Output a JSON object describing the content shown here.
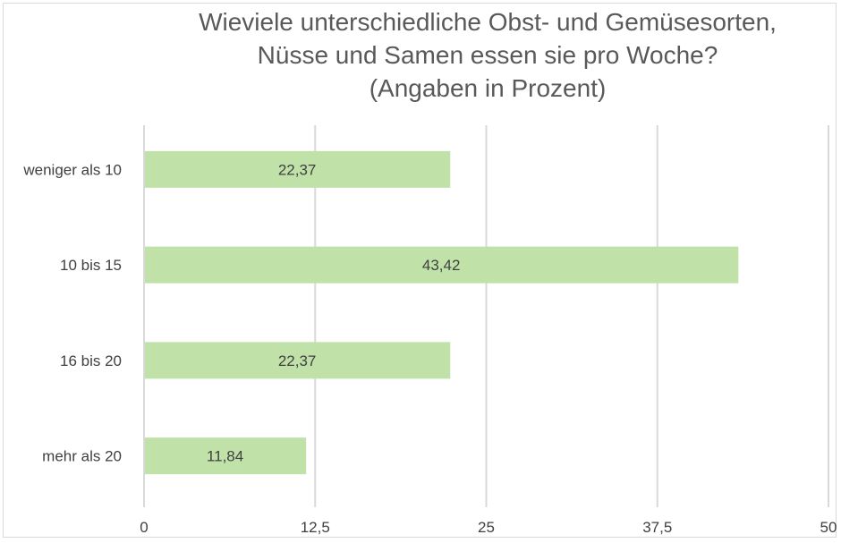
{
  "chart_data": {
    "type": "bar",
    "orientation": "horizontal",
    "title_lines": [
      "Wieviele unterschiedliche Obst- und Gemüsesorten,",
      "Nüsse und Samen essen sie pro Woche?",
      "(Angaben in Prozent)"
    ],
    "categories": [
      "weniger als 10",
      "10 bis 15",
      "16 bis 20",
      "mehr als 20"
    ],
    "values": [
      22.37,
      43.42,
      22.37,
      11.84
    ],
    "data_labels": [
      "22,37",
      "43,42",
      "22,37",
      "11,84"
    ],
    "xlim": [
      0,
      50
    ],
    "ticks": [
      0,
      12.5,
      25,
      37.5,
      50
    ],
    "tick_labels": [
      "0",
      "12,5",
      "25",
      "37,5",
      "50"
    ],
    "grid": true,
    "legend": "none",
    "bar_color": "#c0e2a8",
    "grid_color": "#d9d9d9",
    "text_color": "#404040"
  }
}
